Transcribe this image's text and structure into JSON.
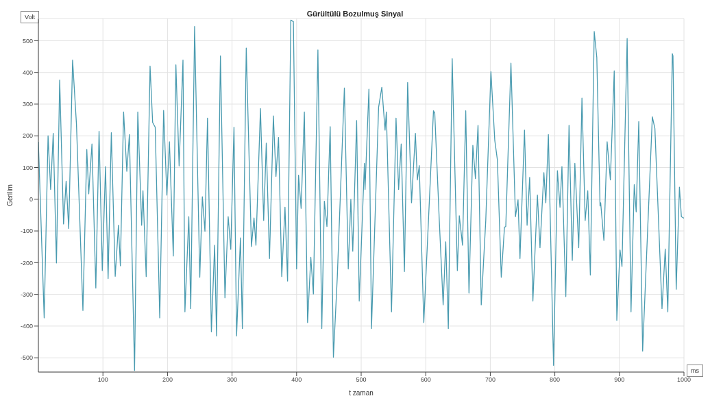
{
  "chart_data": {
    "type": "line",
    "title": "Gürültülü Bozulmuş Sinyal",
    "xlabel": "t zaman",
    "ylabel": "Gerilim",
    "annotations": [
      "Volt",
      "ms"
    ],
    "xlim": [
      0,
      1000
    ],
    "xticks": [
      100,
      200,
      300,
      400,
      500,
      600,
      700,
      800,
      900,
      1000
    ],
    "ylim": [
      -545,
      570
    ],
    "yticks": [
      -500,
      -400,
      -300,
      -200,
      -100,
      0,
      100,
      200,
      300,
      400,
      500
    ],
    "grid": true,
    "series": [
      {
        "color": "#4a9bb0",
        "x": [
          0,
          9,
          15,
          19,
          23,
          28,
          33,
          39,
          43,
          47,
          53,
          59,
          69,
          75,
          78,
          83,
          89,
          94,
          99,
          104,
          108,
          113,
          119,
          124,
          127,
          132,
          137,
          141,
          149,
          154,
          160,
          162,
          167,
          173,
          177,
          181,
          188,
          194,
          199,
          203,
          209,
          213,
          218,
          224,
          227,
          233,
          236,
          242,
          250,
          254,
          258,
          262,
          268,
          273,
          276,
          282,
          289,
          294,
          298,
          303,
          307,
          313,
          316,
          322,
          330,
          334,
          337,
          344,
          349,
          353,
          358,
          364,
          368,
          372,
          377,
          382,
          386,
          391,
          395,
          400,
          403,
          407,
          412,
          417,
          422,
          426,
          433,
          439,
          443,
          447,
          452,
          457,
          463,
          474,
          480,
          484,
          487,
          493,
          497,
          505,
          506,
          512,
          516,
          527,
          532,
          537,
          539,
          547,
          554,
          558,
          562,
          567,
          572,
          578,
          584,
          587,
          590,
          597,
          612,
          614,
          621,
          627,
          631,
          635,
          641,
          649,
          652,
          657,
          662,
          667,
          673,
          677,
          681,
          686,
          693,
          701,
          707,
          711,
          717,
          722,
          724,
          732,
          739,
          743,
          746,
          753,
          757,
          761,
          766,
          773,
          777,
          783,
          786,
          790,
          798,
          804,
          808,
          811,
          817,
          822,
          827,
          831,
          837,
          842,
          847,
          851,
          855,
          861,
          865,
          870,
          871,
          876,
          881,
          886,
          892,
          896,
          901,
          904,
          912,
          918,
          923,
          926,
          930,
          936,
          951,
          955,
          966,
          971,
          975,
          982,
          983,
          988,
          993,
          996,
          1000
        ],
        "values": [
          181,
          -374,
          200,
          31,
          208,
          -201,
          376,
          -78,
          57,
          -92,
          439,
          237,
          -351,
          157,
          17,
          174,
          -280,
          214,
          -225,
          103,
          -250,
          210,
          -243,
          -82,
          -210,
          275,
          88,
          204,
          -540,
          275,
          -82,
          27,
          -244,
          420,
          242,
          227,
          -374,
          280,
          13,
          181,
          -179,
          424,
          105,
          439,
          -355,
          -55,
          -345,
          545,
          -246,
          8,
          -101,
          256,
          -418,
          -145,
          -431,
          452,
          -311,
          -55,
          -158,
          227,
          -431,
          -122,
          -408,
          477,
          -149,
          -59,
          -145,
          286,
          -67,
          177,
          -187,
          263,
          72,
          195,
          -244,
          -25,
          -258,
          565,
          560,
          -220,
          76,
          -29,
          275,
          -389,
          -183,
          -299,
          471,
          -408,
          -6,
          -86,
          229,
          -498,
          -246,
          351,
          -220,
          0,
          -164,
          248,
          -321,
          113,
          31,
          347,
          -408,
          290,
          353,
          218,
          275,
          -355,
          256,
          31,
          174,
          -228,
          368,
          -11,
          208,
          61,
          106,
          -389,
          279,
          271,
          -67,
          -333,
          -134,
          -408,
          443,
          -225,
          -52,
          -145,
          279,
          -296,
          170,
          65,
          233,
          -333,
          -67,
          402,
          185,
          124,
          -246,
          -88,
          -86,
          429,
          -55,
          -2,
          -187,
          218,
          -82,
          69,
          -321,
          13,
          -153,
          84,
          -11,
          204,
          -524,
          90,
          -25,
          103,
          -307,
          233,
          -193,
          113,
          -153,
          319,
          -67,
          27,
          -239,
          529,
          447,
          -21,
          -11,
          -130,
          181,
          61,
          405,
          -382,
          -160,
          -212,
          507,
          -355,
          46,
          -40,
          245,
          -479,
          260,
          223,
          -345,
          -157,
          -355,
          459,
          452,
          -284,
          38,
          -55,
          -60
        ]
      }
    ]
  }
}
